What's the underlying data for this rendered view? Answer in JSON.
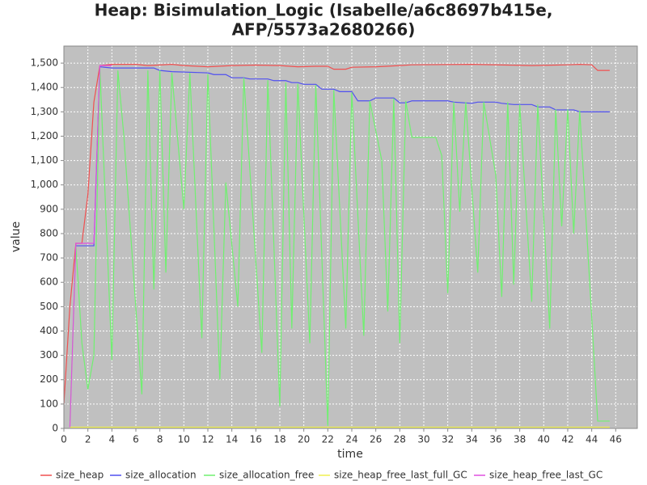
{
  "chart_data": {
    "type": "line",
    "title": [
      "Heap: Bisimulation_Logic (Isabelle/a6c8697b415e,",
      "AFP/5573a2680266)"
    ],
    "x_label": "time",
    "y_label": "value",
    "xlim": [
      0,
      47.8
    ],
    "ylim": [
      0,
      1570
    ],
    "xticks": [
      0,
      2,
      4,
      6,
      8,
      10,
      12,
      14,
      16,
      18,
      20,
      22,
      24,
      26,
      28,
      30,
      32,
      34,
      36,
      38,
      40,
      42,
      44,
      46
    ],
    "yticks": [
      0,
      100,
      200,
      300,
      400,
      500,
      600,
      700,
      800,
      900,
      {
        "value": 1000,
        "label": "1,000"
      },
      {
        "value": 1100,
        "label": "1,100"
      },
      {
        "value": 1200,
        "label": "1,200"
      },
      {
        "value": 1300,
        "label": "1,300"
      },
      {
        "value": 1400,
        "label": "1,400"
      },
      {
        "value": 1500,
        "label": "1,500"
      }
    ],
    "grid": true,
    "series": [
      {
        "name": "size_heap",
        "color": "#f05050",
        "x": [
          0,
          0.5,
          1,
          1.5,
          2,
          2.5,
          3,
          4,
          6,
          7,
          9,
          10,
          12,
          14,
          16,
          18,
          19.5,
          21,
          22,
          22.5,
          23.5,
          24,
          26,
          28,
          29,
          34,
          37,
          39,
          41,
          42,
          43,
          44,
          44.5,
          45.5
        ],
        "values": [
          100,
          500,
          760,
          760,
          960,
          1340,
          1490,
          1495,
          1495,
          1490,
          1495,
          1490,
          1485,
          1490,
          1492,
          1490,
          1485,
          1487,
          1487,
          1475,
          1475,
          1483,
          1485,
          1490,
          1493,
          1495,
          1492,
          1490,
          1492,
          1493,
          1495,
          1493,
          1470,
          1470
        ]
      },
      {
        "name": "size_allocation",
        "color": "#5050f0",
        "x": [
          1,
          2.5,
          3,
          4,
          7.5,
          8,
          9,
          12,
          12.5,
          13.5,
          14,
          15,
          15.5,
          17,
          17.5,
          18.5,
          19,
          19.5,
          20,
          21,
          21.5,
          22.5,
          23,
          24,
          24.5,
          25.5,
          26,
          27.5,
          28,
          28.5,
          29,
          32,
          32.5,
          34,
          34.5,
          36,
          36.5,
          37.5,
          39,
          39.5,
          40.5,
          41,
          42.5,
          43,
          45.5
        ],
        "values": [
          750,
          750,
          1485,
          1480,
          1480,
          1470,
          1465,
          1460,
          1453,
          1453,
          1440,
          1440,
          1435,
          1435,
          1428,
          1428,
          1420,
          1420,
          1413,
          1413,
          1393,
          1393,
          1383,
          1383,
          1345,
          1345,
          1357,
          1357,
          1337,
          1337,
          1345,
          1345,
          1340,
          1335,
          1340,
          1340,
          1335,
          1330,
          1330,
          1320,
          1320,
          1308,
          1308,
          1300,
          1300
        ]
      },
      {
        "name": "size_allocation_free",
        "color": "#70f070",
        "x": [
          0.5,
          1,
          1.5,
          2,
          2.5,
          3,
          4,
          4.5,
          5,
          6.5,
          7,
          7.5,
          8,
          8.5,
          9,
          10,
          10.5,
          11.5,
          12,
          13,
          13.5,
          14.5,
          15,
          16.5,
          17,
          18,
          18.5,
          19,
          19.5,
          20.5,
          21,
          22,
          22.5,
          23.5,
          24,
          25,
          25.5,
          26.5,
          27,
          27.5,
          28,
          28.5,
          29,
          31,
          31.5,
          32,
          32.5,
          33,
          33.5,
          34.5,
          35,
          36,
          36.5,
          37,
          37.5,
          38,
          39,
          39.5,
          40.5,
          41,
          41.5,
          42,
          42.5,
          43,
          44.5,
          45.5
        ],
        "values": [
          30,
          750,
          350,
          160,
          300,
          1480,
          280,
          1470,
          1200,
          140,
          1470,
          570,
          1470,
          640,
          1460,
          900,
          1460,
          370,
          1455,
          200,
          1010,
          500,
          1440,
          310,
          1430,
          90,
          1420,
          410,
          1415,
          350,
          1410,
          10,
          1390,
          410,
          1380,
          380,
          1345,
          1100,
          480,
          1355,
          350,
          1345,
          1195,
          1195,
          1120,
          555,
          1340,
          890,
          1340,
          640,
          1340,
          1040,
          540,
          1340,
          590,
          1330,
          520,
          1330,
          410,
          1310,
          830,
          1310,
          800,
          1305,
          30,
          30
        ]
      },
      {
        "name": "size_heap_free_last_full_GC",
        "color": "#f0f050",
        "x": [
          0.5,
          45.5
        ],
        "values": [
          5,
          5
        ]
      },
      {
        "name": "size_heap_free_last_GC",
        "color": "#e050e0",
        "x": [
          0.5,
          1,
          2.5,
          3,
          4
        ],
        "values": [
          5,
          760,
          760,
          1490,
          1490
        ]
      }
    ]
  }
}
